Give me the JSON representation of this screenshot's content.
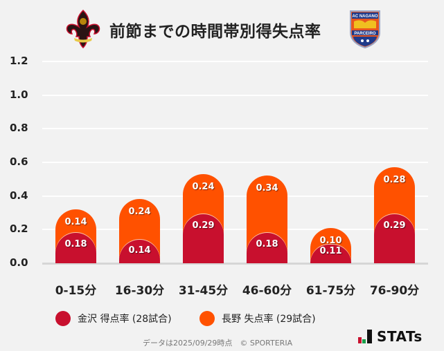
{
  "header": {
    "title": "前節までの時間帯別得失点率",
    "left_logo": "kanazawa-fleur-de-lis-crest",
    "right_logo": "ac-nagano-parceiro-shield",
    "right_logo_text_top": "AC NAGANO",
    "right_logo_text_bottom": "PARCEIRO"
  },
  "colors": {
    "kanazawa": "#c8102e",
    "nagano": "#ff5100",
    "background": "#f2f2f2",
    "grid": "#ffffff"
  },
  "yaxis": {
    "ticks": [
      "1.2",
      "1.0",
      "0.8",
      "0.6",
      "0.4",
      "0.2",
      "0.0"
    ]
  },
  "chart_data": {
    "type": "bar",
    "stacked": true,
    "title": "前節までの時間帯別得失点率",
    "categories": [
      "0-15分",
      "16-30分",
      "31-45分",
      "46-60分",
      "61-75分",
      "76-90分"
    ],
    "series": [
      {
        "name": "金沢 得点率 (28試合)",
        "color": "#c8102e",
        "values": [
          0.18,
          0.14,
          0.29,
          0.18,
          0.11,
          0.29
        ]
      },
      {
        "name": "長野 失点率 (29試合)",
        "color": "#ff5100",
        "values": [
          0.14,
          0.24,
          0.24,
          0.34,
          0.1,
          0.28
        ]
      }
    ],
    "xlabel": "",
    "ylabel": "",
    "ylim": [
      0,
      1.2
    ],
    "yticks": [
      0.0,
      0.2,
      0.4,
      0.6,
      0.8,
      1.0,
      1.2
    ],
    "grid": true,
    "legend_position": "bottom"
  },
  "bars": [
    {
      "category": "0-15分",
      "bottom": "0.18",
      "top": "0.14"
    },
    {
      "category": "16-30分",
      "bottom": "0.14",
      "top": "0.24"
    },
    {
      "category": "31-45分",
      "bottom": "0.29",
      "top": "0.24"
    },
    {
      "category": "46-60分",
      "bottom": "0.18",
      "top": "0.34"
    },
    {
      "category": "61-75分",
      "bottom": "0.11",
      "top": "0.10"
    },
    {
      "category": "76-90分",
      "bottom": "0.29",
      "top": "0.28"
    }
  ],
  "legend": {
    "items": [
      {
        "label": "金沢 得点率 (28試合)",
        "color": "#c8102e"
      },
      {
        "label": "長野 失点率 (29試合)",
        "color": "#ff5100"
      }
    ]
  },
  "footer": {
    "note": "データは2025/09/29時点　© SPORTERIA",
    "brand": "STATs"
  }
}
